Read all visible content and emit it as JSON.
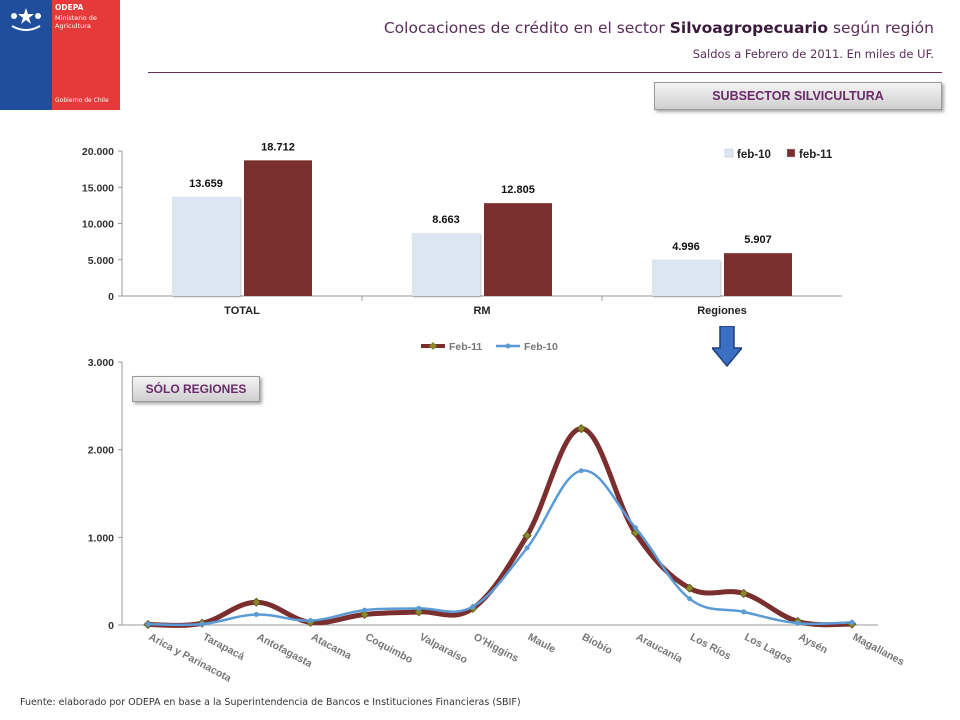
{
  "header": {
    "logo_line1": "ODEPA",
    "logo_line2": "Ministerio de",
    "logo_line3": "Agricultura",
    "logo_footer": "Gobierno de Chile",
    "title_prefix": "Colocaciones de crédito en el sector ",
    "title_bold": "Silvoagropecuario",
    "title_suffix": " según región",
    "subtitle": "Saldos a Febrero de 2011. En miles de UF."
  },
  "tags": {
    "subsector": "SUBSECTOR SILVICULTURA",
    "regiones": "SÓLO REGIONES"
  },
  "footer": "Fuente: elaborado por ODEPA en base a la Superintendencia de Bancos e Instituciones Financieras (SBIF)",
  "colors": {
    "feb10_bar": "#dce6f2",
    "feb11_bar": "#7b2e2e",
    "feb11_line": "#7b2e2e",
    "feb10_line": "#5b9bd5",
    "arrow": "#3a6fc4"
  },
  "chart_data": [
    {
      "type": "bar",
      "categories": [
        "TOTAL",
        "RM",
        "Regiones"
      ],
      "series": [
        {
          "name": "feb-10",
          "values": [
            13659,
            8663,
            4996
          ],
          "labels": [
            "13.659",
            "8.663",
            "4.996"
          ]
        },
        {
          "name": "feb-11",
          "values": [
            18712,
            12805,
            5907
          ],
          "labels": [
            "18.712",
            "12.805",
            "5.907"
          ]
        }
      ],
      "ylim": [
        0,
        20000
      ],
      "yticks": [
        0,
        5000,
        10000,
        15000,
        20000
      ],
      "ytick_labels": [
        "0",
        "5.000",
        "10.000",
        "15.000",
        "20.000"
      ],
      "legend": "top-right"
    },
    {
      "type": "line",
      "categories": [
        "Arica y Parinacota",
        "Tarapacá",
        "Antofagasta",
        "Atacama",
        "Coquimbo",
        "Valparaíso",
        "O'Higgins",
        "Maule",
        "Biobío",
        "Araucanía",
        "Los Ríos",
        "Los Lagos",
        "Aysén",
        "Magallanes"
      ],
      "series": [
        {
          "name": "Feb-11",
          "values": [
            5,
            20,
            260,
            30,
            120,
            150,
            190,
            1020,
            2240,
            1050,
            420,
            360,
            40,
            10
          ]
        },
        {
          "name": "Feb-10",
          "values": [
            10,
            10,
            120,
            50,
            170,
            190,
            210,
            880,
            1760,
            1110,
            300,
            150,
            20,
            30
          ]
        }
      ],
      "ylim": [
        0,
        3000
      ],
      "yticks": [
        0,
        1000,
        2000,
        3000
      ],
      "ytick_labels": [
        "0",
        "1.000",
        "2.000",
        "3.000"
      ],
      "legend": "top-center"
    }
  ]
}
